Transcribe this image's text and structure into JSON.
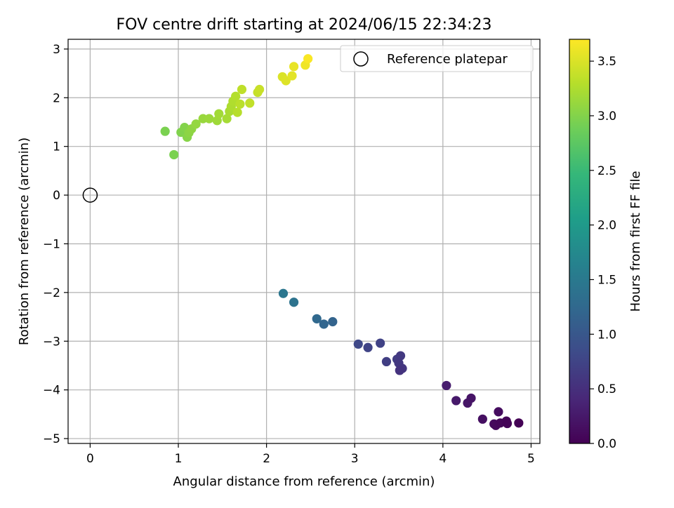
{
  "chart_data": {
    "type": "scatter",
    "title": "FOV centre drift starting at 2024/06/15 22:34:23",
    "xlabel": "Angular distance from reference (arcmin)",
    "ylabel": "Rotation from reference (arcmin)",
    "xlim": [
      -0.25,
      5.1
    ],
    "ylim": [
      -5.1,
      3.2
    ],
    "xticks": [
      0,
      1,
      2,
      3,
      4,
      5
    ],
    "yticks": [
      -5,
      -4,
      -3,
      -2,
      -1,
      0,
      1,
      2,
      3
    ],
    "grid": true,
    "legend": {
      "position": "upper-right",
      "entries": [
        "Reference platepar"
      ]
    },
    "reference_point": {
      "name": "Reference platepar",
      "x": 0,
      "y": 0,
      "marker": "open-circle",
      "color": "#000000"
    },
    "colorbar": {
      "label": "Hours from first FF file",
      "range": [
        0.0,
        3.7
      ],
      "ticks": [
        "0.0",
        "0.5",
        "1.0",
        "1.5",
        "2.0",
        "2.5",
        "3.0",
        "3.5"
      ],
      "colormap": "viridis",
      "colors": [
        "#440154",
        "#482878",
        "#3e4a89",
        "#31688e",
        "#26828e",
        "#1f9e89",
        "#35b779",
        "#6ece58",
        "#b5de2b",
        "#fde725"
      ]
    },
    "points": [
      {
        "x": 2.19,
        "y": -2.02,
        "t": 1.45
      },
      {
        "x": 2.31,
        "y": -2.2,
        "t": 1.4
      },
      {
        "x": 2.57,
        "y": -2.54,
        "t": 1.25
      },
      {
        "x": 2.65,
        "y": -2.65,
        "t": 1.2
      },
      {
        "x": 2.75,
        "y": -2.6,
        "t": 1.18
      },
      {
        "x": 3.04,
        "y": -3.06,
        "t": 0.8
      },
      {
        "x": 3.15,
        "y": -3.13,
        "t": 0.75
      },
      {
        "x": 3.29,
        "y": -3.04,
        "t": 0.72
      },
      {
        "x": 3.36,
        "y": -3.42,
        "t": 0.68
      },
      {
        "x": 3.48,
        "y": -3.37,
        "t": 0.66
      },
      {
        "x": 3.52,
        "y": -3.3,
        "t": 0.62
      },
      {
        "x": 3.5,
        "y": -3.45,
        "t": 0.6
      },
      {
        "x": 3.54,
        "y": -3.56,
        "t": 0.58
      },
      {
        "x": 3.51,
        "y": -3.6,
        "t": 0.55
      },
      {
        "x": 4.04,
        "y": -3.91,
        "t": 0.3
      },
      {
        "x": 4.15,
        "y": -4.22,
        "t": 0.25
      },
      {
        "x": 4.28,
        "y": -4.27,
        "t": 0.22
      },
      {
        "x": 4.32,
        "y": -4.17,
        "t": 0.2
      },
      {
        "x": 4.45,
        "y": -4.6,
        "t": 0.15
      },
      {
        "x": 4.58,
        "y": -4.7,
        "t": 0.1
      },
      {
        "x": 4.6,
        "y": -4.73,
        "t": 0.08
      },
      {
        "x": 4.63,
        "y": -4.45,
        "t": 0.12
      },
      {
        "x": 4.65,
        "y": -4.68,
        "t": 0.06
      },
      {
        "x": 4.72,
        "y": -4.64,
        "t": 0.04
      },
      {
        "x": 4.73,
        "y": -4.69,
        "t": 0.03
      },
      {
        "x": 4.86,
        "y": -4.68,
        "t": 0.01
      },
      {
        "x": 0.85,
        "y": 1.31,
        "t": 2.95
      },
      {
        "x": 0.95,
        "y": 0.83,
        "t": 2.95
      },
      {
        "x": 1.03,
        "y": 1.29,
        "t": 2.98
      },
      {
        "x": 1.07,
        "y": 1.39,
        "t": 3.0
      },
      {
        "x": 1.1,
        "y": 1.19,
        "t": 3.02
      },
      {
        "x": 1.12,
        "y": 1.28,
        "t": 3.05
      },
      {
        "x": 1.15,
        "y": 1.36,
        "t": 3.07
      },
      {
        "x": 1.2,
        "y": 1.46,
        "t": 3.1
      },
      {
        "x": 1.28,
        "y": 1.57,
        "t": 3.12
      },
      {
        "x": 1.35,
        "y": 1.57,
        "t": 3.14
      },
      {
        "x": 1.44,
        "y": 1.53,
        "t": 3.16
      },
      {
        "x": 1.46,
        "y": 1.67,
        "t": 3.18
      },
      {
        "x": 1.55,
        "y": 1.57,
        "t": 3.2
      },
      {
        "x": 1.58,
        "y": 1.72,
        "t": 3.22
      },
      {
        "x": 1.6,
        "y": 1.82,
        "t": 3.24
      },
      {
        "x": 1.62,
        "y": 1.93,
        "t": 3.26
      },
      {
        "x": 1.65,
        "y": 2.03,
        "t": 3.28
      },
      {
        "x": 1.67,
        "y": 1.7,
        "t": 3.3
      },
      {
        "x": 1.7,
        "y": 1.87,
        "t": 3.32
      },
      {
        "x": 1.72,
        "y": 2.17,
        "t": 3.34
      },
      {
        "x": 1.81,
        "y": 1.89,
        "t": 3.36
      },
      {
        "x": 1.9,
        "y": 2.11,
        "t": 3.38
      },
      {
        "x": 1.92,
        "y": 2.17,
        "t": 3.4
      },
      {
        "x": 2.18,
        "y": 2.43,
        "t": 3.5
      },
      {
        "x": 2.22,
        "y": 2.35,
        "t": 3.52
      },
      {
        "x": 2.29,
        "y": 2.45,
        "t": 3.55
      },
      {
        "x": 2.31,
        "y": 2.64,
        "t": 3.58
      },
      {
        "x": 2.44,
        "y": 2.67,
        "t": 3.62
      },
      {
        "x": 2.47,
        "y": 2.8,
        "t": 3.68
      }
    ]
  }
}
